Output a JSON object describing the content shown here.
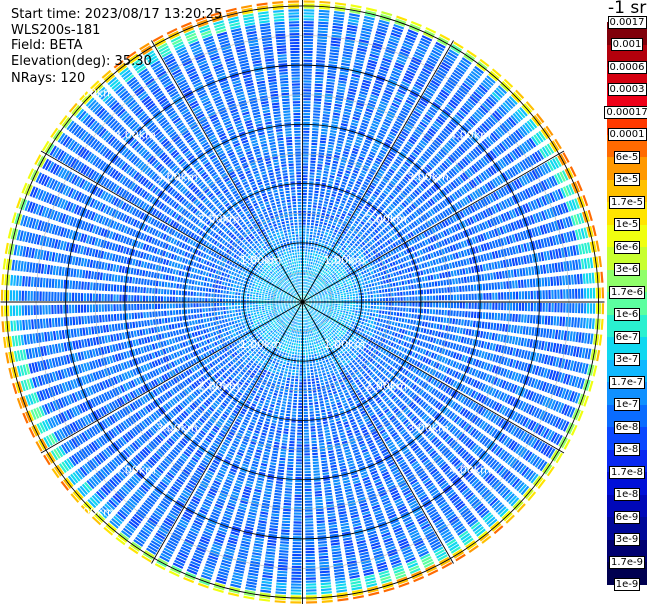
{
  "header": {
    "start_time": "Start time: 2023/08/17 13:20:25",
    "station": "WLS200s-181",
    "field": "Field: BETA",
    "elevation": "Elevation(deg): 35.30",
    "nrays": "NRays: 120"
  },
  "colorbar": {
    "unit": "-1 sr",
    "colors": [
      "#80000a",
      "#b3000c",
      "#d50010",
      "#ee0018",
      "#ff3a00",
      "#ff6a00",
      "#ff9800",
      "#ffc000",
      "#ffe400",
      "#f0ff10",
      "#c8ff30",
      "#90ff6a",
      "#5cffa0",
      "#2af0d0",
      "#10d8f0",
      "#10b8ff",
      "#1090ff",
      "#0a6cff",
      "#0a48ff",
      "#0828f0",
      "#0010d8",
      "#0008b8",
      "#000898",
      "#000070",
      "#000050"
    ],
    "labels": [
      "0.0017",
      "0.001",
      "0.0006",
      "0.0003",
      "0.00017",
      "0.0001",
      "6e-5",
      "3e-5",
      "1.7e-5",
      "1e-5",
      "6e-6",
      "3e-6",
      "1.7e-6",
      "1e-6",
      "6e-7",
      "3e-7",
      "1.7e-7",
      "1e-7",
      "6e-8",
      "3e-8",
      "1.7e-8",
      "1e-8",
      "6e-9",
      "3e-9",
      "1.7e-9",
      "1e-9"
    ]
  },
  "chart_data": {
    "type": "heatmap",
    "projection": "polar PPI scan",
    "field": "BETA",
    "elevation_deg": 35.3,
    "n_rays": 120,
    "range_rings_km": [
      1,
      2,
      3,
      4,
      5
    ],
    "ring_labels": [
      "1.00km",
      "2.00km",
      "3.00km",
      "4.00km",
      "5.00km"
    ],
    "spoke_angles_deg": [
      0,
      30,
      60,
      90,
      120,
      150,
      180,
      210,
      240,
      270,
      300,
      330
    ],
    "value_profile_by_range": [
      {
        "range_km": 0.5,
        "beta": "3e-7"
      },
      {
        "range_km": 1.0,
        "beta": "1e-7"
      },
      {
        "range_km": 2.0,
        "beta": "3e-8"
      },
      {
        "range_km": 3.0,
        "beta": "3e-8"
      },
      {
        "range_km": 4.0,
        "beta": "3e-8"
      },
      {
        "range_km": 5.0,
        "beta": "1e-7"
      },
      {
        "range_km": 5.1,
        "beta": "6e-6"
      }
    ]
  }
}
